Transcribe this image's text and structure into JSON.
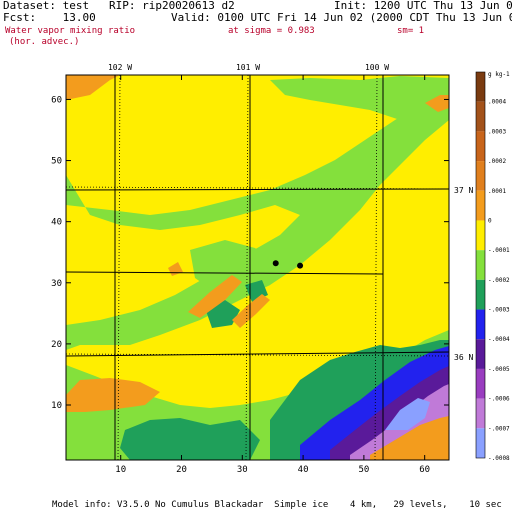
{
  "header": {
    "dataset": "Dataset: test   RIP: rip20020613 d2",
    "init": "Init: 1200 UTC Thu 13 Jun 02",
    "fcst": "Fcst:    13.00",
    "valid": "Valid: 0100 UTC Fri 14 Jun 02 (2000 CDT Thu 13 Jun 02)",
    "field": "Water vapor mixing ratio",
    "field_sub": "(hor. advec.)",
    "level": "at sigma = 0.983",
    "sm": "sm= 1"
  },
  "footer": "Model info: V3.5.0 No Cumulus Blackadar  Simple ice    4 km,   29 levels,    10 sec",
  "colors": {
    "orange": "#f39c1d",
    "yellow": "#ffee00",
    "lightgreen": "#84e03c",
    "green": "#1fa05a",
    "blue": "#2222ee",
    "purple": "#7a1f9c",
    "lightpurple": "#c07ad8",
    "periwinkle": "#8aa0ff"
  },
  "chart_data": {
    "type": "heatmap",
    "xlim": [
      1,
      64
    ],
    "ylim": [
      1,
      64
    ],
    "xticks": [
      10,
      20,
      30,
      40,
      50,
      60
    ],
    "yticks": [
      10,
      20,
      30,
      40,
      50,
      60
    ],
    "top_labels": [
      "102 W",
      "101 W",
      "100 W"
    ],
    "right_labels": [
      "37 N",
      "36 N"
    ],
    "colorbar_unit": "g kg-1",
    "colorbar_levels": [
      ".0004",
      ".0003",
      ".0002",
      ".0001",
      "0",
      "-.0001",
      "-.0002",
      "-.0003",
      "-.0004",
      "-.0005",
      "-.0006",
      "-.0007",
      "-.0008"
    ],
    "colorbar_colors": [
      "#7a3b10",
      "#a3521a",
      "#c8641a",
      "#e07f1d",
      "#f39c1d",
      "#ffee00",
      "#84e03c",
      "#1fa05a",
      "#2222ee",
      "#5a1a9a",
      "#9a3dc0",
      "#c07ad8",
      "#8aa0ff"
    ],
    "markers": [
      {
        "x": 35.5,
        "y": 33.2
      },
      {
        "x": 39.5,
        "y": 32.8
      }
    ]
  }
}
